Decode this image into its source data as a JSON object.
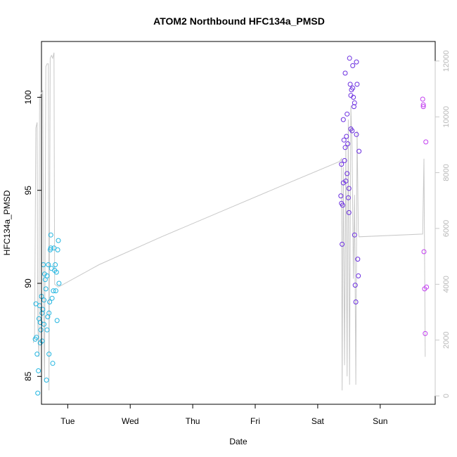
{
  "chart_data": {
    "type": "scatter",
    "title": "ATOM2 Northbound HFC134a_PMSD",
    "xlabel": "Date",
    "ylabel": "HFC134a_PMSD",
    "x_ticks": [
      "Tue",
      "Wed",
      "Thu",
      "Fri",
      "Sat",
      "Sun"
    ],
    "xlim_days": [
      -0.42,
      5.88
    ],
    "ylim": [
      83.5,
      103
    ],
    "y_ticks": [
      85,
      90,
      95,
      100
    ],
    "y2lim": [
      -300,
      12700
    ],
    "y2_ticks": [
      0,
      2000,
      4000,
      6000,
      8000,
      10000,
      12000
    ],
    "grid": false,
    "legend": "none",
    "point_series": [
      {
        "color": "#22b5e0",
        "points": [
          [
            -0.52,
            87.0
          ],
          [
            -0.51,
            88.9
          ],
          [
            -0.5,
            87.1
          ],
          [
            -0.49,
            86.2
          ],
          [
            -0.48,
            84.1
          ],
          [
            -0.47,
            85.3
          ],
          [
            -0.46,
            88.1
          ],
          [
            -0.45,
            88.8
          ],
          [
            -0.44,
            86.8
          ],
          [
            -0.43,
            87.5
          ],
          [
            -0.42,
            89.3
          ],
          [
            -0.41,
            86.9
          ],
          [
            -0.4,
            88.6
          ],
          [
            -0.39,
            91.0
          ],
          [
            -0.38,
            89.1
          ],
          [
            -0.37,
            90.5
          ],
          [
            -0.36,
            90.2
          ],
          [
            -0.35,
            89.7
          ],
          [
            -0.34,
            84.8
          ],
          [
            -0.33,
            87.5
          ],
          [
            -0.32,
            88.2
          ],
          [
            -0.31,
            91.0
          ],
          [
            -0.3,
            86.2
          ],
          [
            -0.29,
            89.0
          ],
          [
            -0.28,
            91.8
          ],
          [
            -0.27,
            92.6
          ],
          [
            -0.26,
            90.8
          ],
          [
            -0.25,
            89.2
          ],
          [
            -0.24,
            85.7
          ],
          [
            -0.23,
            89.6
          ],
          [
            -0.22,
            91.9
          ],
          [
            -0.21,
            90.7
          ],
          [
            -0.2,
            91.0
          ],
          [
            -0.19,
            89.6
          ],
          [
            -0.18,
            90.6
          ],
          [
            -0.17,
            88.0
          ],
          [
            -0.16,
            91.8
          ],
          [
            -0.15,
            92.3
          ],
          [
            -0.14,
            90.0
          ],
          [
            -0.44,
            87.9
          ],
          [
            -0.41,
            88.4
          ],
          [
            -0.38,
            87.8
          ],
          [
            -0.33,
            90.4
          ],
          [
            -0.3,
            88.4
          ],
          [
            -0.27,
            91.9
          ]
        ]
      },
      {
        "color": "#6b2ee0",
        "points": [
          [
            4.37,
            94.7
          ],
          [
            4.38,
            96.4
          ],
          [
            4.39,
            92.1
          ],
          [
            4.4,
            94.2
          ],
          [
            4.41,
            95.4
          ],
          [
            4.42,
            97.7
          ],
          [
            4.43,
            96.6
          ],
          [
            4.44,
            101.3
          ],
          [
            4.45,
            95.5
          ],
          [
            4.46,
            97.9
          ],
          [
            4.47,
            99.1
          ],
          [
            4.48,
            97.5
          ],
          [
            4.49,
            94.6
          ],
          [
            4.5,
            93.8
          ],
          [
            4.51,
            102.1
          ],
          [
            4.52,
            100.7
          ],
          [
            4.53,
            98.3
          ],
          [
            4.54,
            100.4
          ],
          [
            4.55,
            98.2
          ],
          [
            4.56,
            101.7
          ],
          [
            4.57,
            100.0
          ],
          [
            4.58,
            99.5
          ],
          [
            4.59,
            92.6
          ],
          [
            4.6,
            89.9
          ],
          [
            4.61,
            89.0
          ],
          [
            4.62,
            101.9
          ],
          [
            4.63,
            100.7
          ],
          [
            4.64,
            91.3
          ],
          [
            4.65,
            90.4
          ],
          [
            4.66,
            97.1
          ],
          [
            4.38,
            94.3
          ],
          [
            4.41,
            98.8
          ],
          [
            4.44,
            97.3
          ],
          [
            4.47,
            95.9
          ],
          [
            4.5,
            95.1
          ],
          [
            4.53,
            100.1
          ],
          [
            4.56,
            100.5
          ],
          [
            4.59,
            99.7
          ],
          [
            4.62,
            98.0
          ]
        ]
      },
      {
        "color": "#c23ef0",
        "points": [
          [
            5.68,
            99.9
          ],
          [
            5.69,
            99.6
          ],
          [
            5.7,
            91.7
          ],
          [
            5.71,
            89.7
          ],
          [
            5.72,
            87.3
          ],
          [
            5.73,
            97.6
          ],
          [
            5.74,
            89.8
          ],
          [
            5.69,
            99.5
          ]
        ]
      }
    ],
    "line_series": {
      "color": "#c8c8c8",
      "points": [
        [
          -0.55,
          1900
        ],
        [
          -0.53,
          2200
        ],
        [
          -0.51,
          9600
        ],
        [
          -0.49,
          9800
        ],
        [
          -0.48,
          2500
        ],
        [
          -0.46,
          1400
        ],
        [
          -0.45,
          10700
        ],
        [
          -0.43,
          10800
        ],
        [
          -0.41,
          10900
        ],
        [
          -0.4,
          10950
        ],
        [
          -0.38,
          1800
        ],
        [
          -0.37,
          500
        ],
        [
          -0.35,
          11800
        ],
        [
          -0.33,
          11900
        ],
        [
          -0.31,
          11900
        ],
        [
          -0.3,
          200
        ],
        [
          -0.28,
          12100
        ],
        [
          -0.26,
          12200
        ],
        [
          -0.24,
          12100
        ],
        [
          -0.22,
          12300
        ],
        [
          -0.21,
          4000
        ],
        [
          -0.15,
          3900
        ],
        [
          0.5,
          4700
        ],
        [
          1.5,
          5700
        ],
        [
          2.5,
          6650
        ],
        [
          3.5,
          7600
        ],
        [
          4.35,
          8400
        ],
        [
          4.38,
          8500
        ],
        [
          4.39,
          200
        ],
        [
          4.41,
          8200
        ],
        [
          4.43,
          1100
        ],
        [
          4.45,
          9000
        ],
        [
          4.47,
          700
        ],
        [
          4.49,
          9900
        ],
        [
          4.51,
          400
        ],
        [
          4.53,
          10400
        ],
        [
          4.55,
          8900
        ],
        [
          4.57,
          4200
        ],
        [
          4.59,
          7200
        ],
        [
          4.61,
          400
        ],
        [
          4.63,
          9500
        ],
        [
          4.65,
          5900
        ],
        [
          4.66,
          5700
        ],
        [
          5.68,
          5800
        ],
        [
          5.7,
          8500
        ],
        [
          5.72,
          1400
        ]
      ]
    }
  }
}
